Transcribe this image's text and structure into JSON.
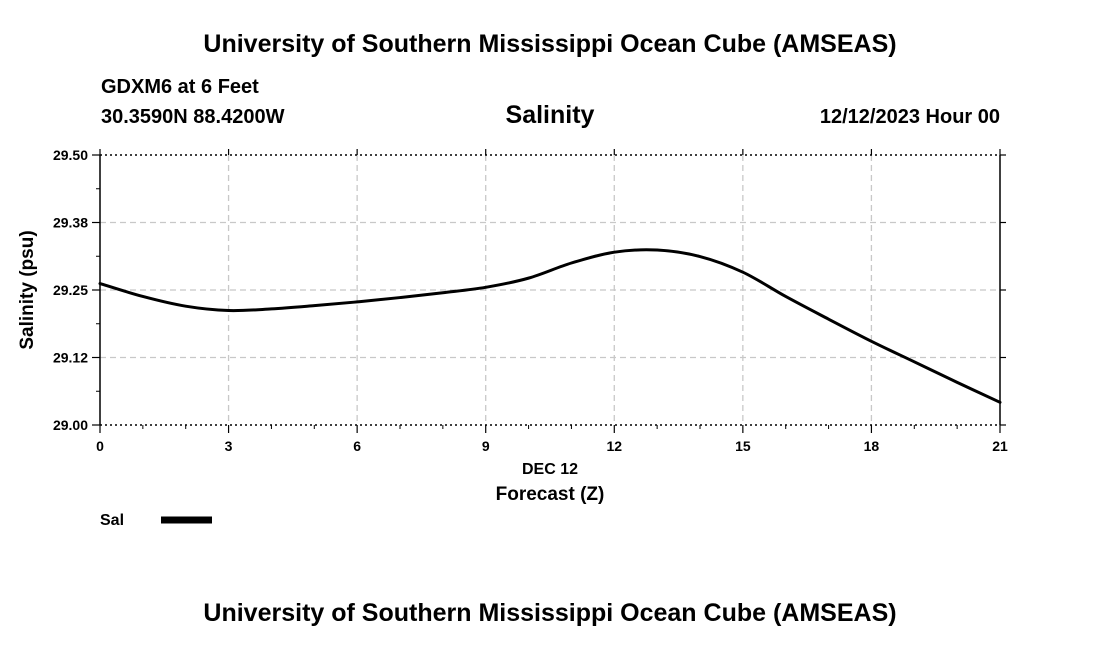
{
  "header": {
    "title": "University of Southern Mississippi Ocean Cube (AMSEAS)",
    "station": "GDXM6 at 6 Feet",
    "coords": "30.3590N  88.4200W",
    "variable": "Salinity",
    "datetime": "12/12/2023 Hour 00"
  },
  "footer": {
    "title": "University of Southern Mississippi Ocean Cube (AMSEAS)"
  },
  "chart_data": {
    "type": "line",
    "title": "Salinity",
    "xlabel": "Forecast (Z)",
    "date_label": "DEC 12",
    "ylabel": "Salinity (psu)",
    "xlim": [
      0,
      21
    ],
    "ylim": [
      29.0,
      29.5
    ],
    "x_ticks": [
      0,
      3,
      6,
      9,
      12,
      15,
      18,
      21
    ],
    "x_tick_labels": [
      "0",
      "3",
      "6",
      "9",
      "12",
      "15",
      "18",
      "21"
    ],
    "y_ticks": [
      29.0,
      29.125,
      29.25,
      29.375,
      29.5
    ],
    "y_tick_labels": [
      "29.00",
      "29.12",
      "29.25",
      "29.38",
      "29.50"
    ],
    "grid": true,
    "legend": "bottom-left",
    "series": [
      {
        "name": "Sal",
        "color": "#000000",
        "x": [
          0,
          1,
          2,
          3,
          4,
          5,
          6,
          7,
          8,
          9,
          10,
          11,
          12,
          13,
          14,
          15,
          16,
          17,
          18,
          19,
          20,
          21
        ],
        "values": [
          29.262,
          29.238,
          29.22,
          29.212,
          29.215,
          29.221,
          29.228,
          29.236,
          29.245,
          29.255,
          29.272,
          29.3,
          29.32,
          29.324,
          29.312,
          29.283,
          29.238,
          29.196,
          29.155,
          29.117,
          29.079,
          29.042
        ]
      }
    ]
  }
}
